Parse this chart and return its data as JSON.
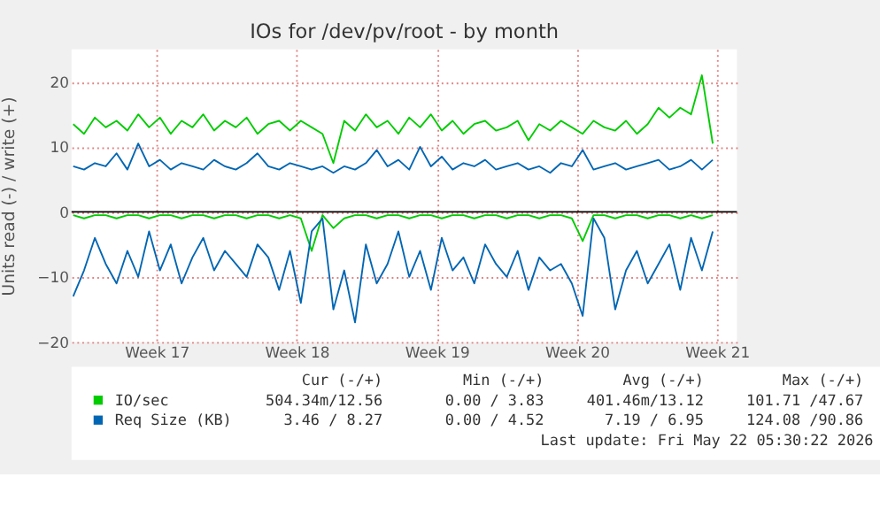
{
  "chart_data": {
    "type": "line",
    "title": "IOs for /dev/pv/root - by month",
    "ylabel": "Units read (-) / write (+)",
    "x": [
      "2026-04-20T02:00",
      "2026-04-20T15:00",
      "2026-04-21T04:00",
      "2026-04-21T17:00",
      "2026-04-22T06:00",
      "2026-04-22T19:00",
      "2026-04-23T08:00",
      "2026-04-23T21:00",
      "2026-04-24T10:00",
      "2026-04-24T23:00",
      "2026-04-25T12:00",
      "2026-04-26T01:00",
      "2026-04-26T14:00",
      "2026-04-27T03:00",
      "2026-04-27T16:00",
      "2026-04-28T05:00",
      "2026-04-28T18:00",
      "2026-04-29T07:00",
      "2026-04-29T20:00",
      "2026-04-30T09:00",
      "2026-04-30T22:00",
      "2026-05-01T11:00",
      "2026-05-02T00:00",
      "2026-05-02T13:00",
      "2026-05-03T02:00",
      "2026-05-03T15:00",
      "2026-05-04T04:00",
      "2026-05-04T17:00",
      "2026-05-05T06:00",
      "2026-05-05T19:00",
      "2026-05-06T08:00",
      "2026-05-06T21:00",
      "2026-05-07T10:00",
      "2026-05-07T23:00",
      "2026-05-08T12:00",
      "2026-05-09T01:00",
      "2026-05-09T14:00",
      "2026-05-10T03:00",
      "2026-05-10T16:00",
      "2026-05-11T05:00",
      "2026-05-11T18:00",
      "2026-05-12T07:00",
      "2026-05-12T20:00",
      "2026-05-13T09:00",
      "2026-05-13T22:00",
      "2026-05-14T11:00",
      "2026-05-15T00:00",
      "2026-05-15T13:00",
      "2026-05-16T02:00",
      "2026-05-16T15:00",
      "2026-05-17T04:00",
      "2026-05-17T17:00",
      "2026-05-18T06:00",
      "2026-05-18T19:00",
      "2026-05-19T08:00",
      "2026-05-19T21:00",
      "2026-05-20T10:00",
      "2026-05-20T23:00",
      "2026-05-21T12:00",
      "2026-05-22T01:00"
    ],
    "series": [
      {
        "name": "IO/sec",
        "color": "#00cc00",
        "values": [
          13.5,
          12,
          14.5,
          13,
          14,
          12.5,
          15,
          13,
          14.5,
          12,
          14,
          13,
          15,
          12.5,
          14,
          13,
          14.5,
          12,
          13.5,
          14,
          12.5,
          14,
          13,
          12,
          7.5,
          14,
          12.5,
          15,
          13,
          14,
          12,
          14.5,
          13,
          15,
          12.5,
          14,
          12,
          13.5,
          14,
          12.5,
          13,
          14,
          11,
          13.5,
          12.5,
          14,
          13,
          12,
          14,
          13,
          12.5,
          14,
          12,
          13.5,
          16,
          14.5,
          16,
          15,
          21,
          10.5
        ]
      },
      {
        "color": "#00cc00",
        "values": [
          -0.5,
          -1,
          -0.5,
          -0.5,
          -1,
          -0.5,
          -0.5,
          -1,
          -0.5,
          -0.5,
          -1,
          -0.5,
          -0.5,
          -1,
          -0.5,
          -0.5,
          -1,
          -0.5,
          -0.5,
          -1,
          -0.5,
          -1,
          -6,
          -0.5,
          -2.5,
          -1,
          -0.5,
          -0.5,
          -1,
          -0.5,
          -0.5,
          -1,
          -0.5,
          -0.5,
          -1,
          -0.5,
          -0.5,
          -1,
          -0.5,
          -0.5,
          -1,
          -0.5,
          -0.5,
          -1,
          -0.5,
          -0.5,
          -1,
          -4.5,
          -0.5,
          -0.5,
          -1,
          -0.5,
          -0.5,
          -1,
          -0.5,
          -0.5,
          -1,
          -0.5,
          -1,
          -0.5
        ]
      },
      {
        "name": "Req Size (KB)",
        "color": "#0066b3",
        "values": [
          7,
          6.5,
          7.5,
          7,
          9,
          6.5,
          10.5,
          7,
          8,
          6.5,
          7.5,
          7,
          6.5,
          8,
          7,
          6.5,
          7.5,
          9,
          7,
          6.5,
          7.5,
          7,
          6.5,
          7,
          6,
          7,
          6.5,
          7.5,
          9.5,
          7,
          8,
          6.5,
          10,
          7,
          8.5,
          6.5,
          7.5,
          7,
          8,
          6.5,
          7,
          7.5,
          6.5,
          7,
          6,
          7.5,
          7,
          9.5,
          6.5,
          7,
          7.5,
          6.5,
          7,
          7.5,
          8,
          6.5,
          7,
          8,
          6.5,
          8
        ]
      },
      {
        "color": "#0066b3",
        "values": [
          -13,
          -9,
          -4,
          -8,
          -11,
          -6,
          -10,
          -3,
          -9,
          -5,
          -11,
          -7,
          -4,
          -9,
          -6,
          -8,
          -10,
          -5,
          -7,
          -12,
          -6,
          -14,
          -3,
          -1,
          -15,
          -9,
          -17,
          -5,
          -11,
          -8,
          -3,
          -10,
          -6,
          -12,
          -4,
          -9,
          -7,
          -11,
          -5,
          -8,
          -10,
          -6,
          -12,
          -7,
          -9,
          -8,
          -11,
          -16,
          -1,
          -4,
          -15,
          -9,
          -6,
          -11,
          -8,
          -5,
          -12,
          -4,
          -9,
          -3
        ]
      }
    ],
    "xlim": [
      "2026-04-20T00:00",
      "2026-05-23T06:00"
    ],
    "xticks": [
      {
        "value": "2026-04-24T06:00",
        "label": "Week 17"
      },
      {
        "value": "2026-05-01T06:00",
        "label": "Week 18"
      },
      {
        "value": "2026-05-08T06:00",
        "label": "Week 19"
      },
      {
        "value": "2026-05-15T06:00",
        "label": "Week 20"
      },
      {
        "value": "2026-05-22T06:00",
        "label": "Week 21"
      }
    ],
    "ylim": [
      -20,
      25
    ],
    "yticks": [
      -20,
      -10,
      0,
      10,
      20
    ],
    "ref_lines": [
      {
        "axis": "y",
        "value": 0,
        "color": "#000000"
      }
    ],
    "grid": true,
    "legend": "bottom",
    "annotations": [
      "Cur (-/+)",
      "Min (-/+)",
      "Avg (-/+)",
      "Max (-/+)",
      "504.34m/12.56",
      "0.00 / 3.83",
      "401.46m/13.12",
      "101.71 /47.67",
      "3.46 / 8.27",
      "0.00 / 4.52",
      "7.19 / 6.95",
      "124.08 /90.86",
      "Last update: Fri May 22 05:30:22 2026"
    ]
  }
}
